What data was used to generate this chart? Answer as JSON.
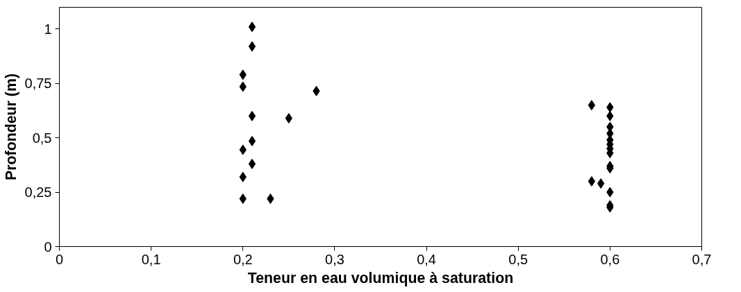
{
  "chart_data": {
    "type": "scatter",
    "xlabel": "Teneur en eau volumique à saturation",
    "ylabel": "Profondeur (m)",
    "x": [
      0.21,
      0.21,
      0.2,
      0.2,
      0.28,
      0.21,
      0.25,
      0.21,
      0.2,
      0.21,
      0.2,
      0.2,
      0.23,
      0.58,
      0.6,
      0.6,
      0.6,
      0.6,
      0.6,
      0.6,
      0.6,
      0.6,
      0.6,
      0.6,
      0.58,
      0.59,
      0.6,
      0.6,
      0.6
    ],
    "series": [
      {
        "color": "#000000",
        "values": [
          1.01,
          0.92,
          0.79,
          0.735,
          0.715,
          0.6,
          0.59,
          0.485,
          0.445,
          0.38,
          0.32,
          0.22,
          0.22,
          0.65,
          0.64,
          0.6,
          0.55,
          0.52,
          0.49,
          0.47,
          0.45,
          0.43,
          0.37,
          0.36,
          0.3,
          0.29,
          0.25,
          0.19,
          0.18
        ]
      }
    ],
    "marker": "diamond",
    "grid": false,
    "xlim": [
      0,
      0.7
    ],
    "ylim": [
      0,
      1.1
    ],
    "xticks": [
      0,
      {
        "value": 0.1,
        "label": "0,1"
      },
      {
        "value": 0.2,
        "label": "0,2"
      },
      {
        "value": 0.3,
        "label": "0,3"
      },
      {
        "value": 0.4,
        "label": "0,4"
      },
      {
        "value": 0.5,
        "label": "0,5"
      },
      {
        "value": 0.6,
        "label": "0,6"
      },
      {
        "value": 0.7,
        "label": "0,7"
      }
    ],
    "yticks": [
      0,
      {
        "value": 0.25,
        "label": "0,25"
      },
      {
        "value": 0.5,
        "label": "0,5"
      },
      {
        "value": 0.75,
        "label": "0,75"
      },
      1
    ]
  }
}
